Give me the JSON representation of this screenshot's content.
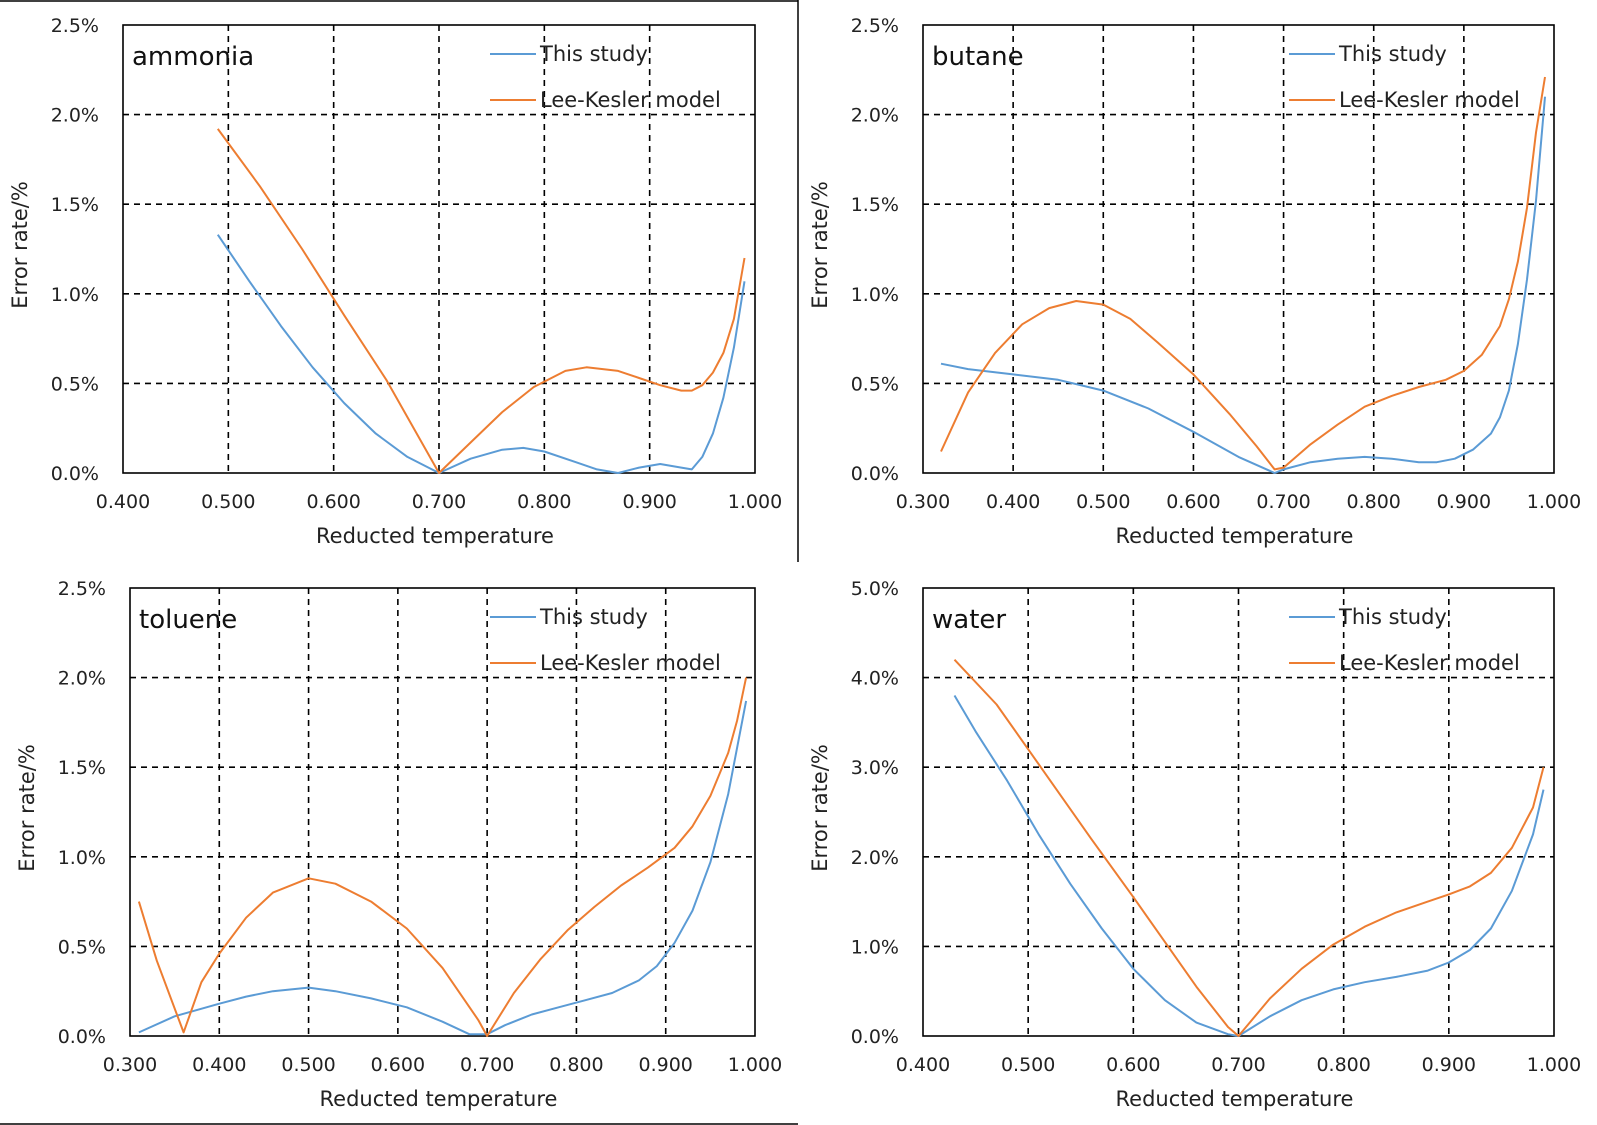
{
  "colors": {
    "this_study": "#5B9BD5",
    "lee_kesler": "#ED7D31",
    "grid": "#000000",
    "frame": "#000000"
  },
  "chart_data": [
    {
      "type": "line",
      "title": "ammonia",
      "xlabel": "Reducted temperature",
      "ylabel": "Error rate/%",
      "xlim": [
        0.4,
        1.0
      ],
      "ylim": [
        0,
        2.5
      ],
      "x_ticks": [
        0.4,
        0.5,
        0.6,
        0.7,
        0.8,
        0.9,
        1.0
      ],
      "x_tick_labels": [
        "0.400",
        "0.500",
        "0.600",
        "0.700",
        "0.800",
        "0.900",
        "1.000"
      ],
      "y_ticks": [
        0,
        0.5,
        1.0,
        1.5,
        2.0,
        2.5
      ],
      "y_tick_labels": [
        "0.0%",
        "0.5%",
        "1.0%",
        "1.5%",
        "2.0%",
        "2.5%"
      ],
      "grid": true,
      "legend": "top-right",
      "series": [
        {
          "name": "This study",
          "color": "#5B9BD5",
          "x": [
            0.49,
            0.52,
            0.55,
            0.58,
            0.61,
            0.64,
            0.67,
            0.7,
            0.73,
            0.76,
            0.78,
            0.8,
            0.83,
            0.85,
            0.87,
            0.89,
            0.91,
            0.93,
            0.94,
            0.95,
            0.96,
            0.97,
            0.98,
            0.99
          ],
          "y": [
            1.33,
            1.07,
            0.82,
            0.59,
            0.39,
            0.22,
            0.09,
            0.0,
            0.08,
            0.13,
            0.14,
            0.12,
            0.06,
            0.02,
            0.0,
            0.03,
            0.05,
            0.03,
            0.02,
            0.09,
            0.22,
            0.42,
            0.7,
            1.07
          ]
        },
        {
          "name": "Lee-Kesler model",
          "color": "#ED7D31",
          "x": [
            0.49,
            0.53,
            0.57,
            0.61,
            0.65,
            0.7,
            0.73,
            0.76,
            0.79,
            0.82,
            0.84,
            0.87,
            0.89,
            0.91,
            0.93,
            0.94,
            0.95,
            0.96,
            0.97,
            0.98,
            0.99
          ],
          "y": [
            1.92,
            1.6,
            1.25,
            0.88,
            0.52,
            0.0,
            0.17,
            0.34,
            0.48,
            0.57,
            0.59,
            0.57,
            0.53,
            0.49,
            0.46,
            0.46,
            0.49,
            0.56,
            0.67,
            0.86,
            1.2
          ]
        }
      ]
    },
    {
      "type": "line",
      "title": "butane",
      "xlabel": "Reducted temperature",
      "ylabel": "Error rate/%",
      "xlim": [
        0.3,
        1.0
      ],
      "ylim": [
        0,
        2.5
      ],
      "x_ticks": [
        0.3,
        0.4,
        0.5,
        0.6,
        0.7,
        0.8,
        0.9,
        1.0
      ],
      "x_tick_labels": [
        "0.300",
        "0.400",
        "0.500",
        "0.600",
        "0.700",
        "0.800",
        "0.900",
        "1.000"
      ],
      "y_ticks": [
        0,
        0.5,
        1.0,
        1.5,
        2.0,
        2.5
      ],
      "y_tick_labels": [
        "0.0%",
        "0.5%",
        "1.0%",
        "1.5%",
        "2.0%",
        "2.5%"
      ],
      "grid": true,
      "legend": "top-right",
      "series": [
        {
          "name": "This study",
          "color": "#5B9BD5",
          "x": [
            0.32,
            0.35,
            0.4,
            0.45,
            0.5,
            0.55,
            0.6,
            0.65,
            0.69,
            0.7,
            0.73,
            0.76,
            0.79,
            0.82,
            0.85,
            0.87,
            0.89,
            0.91,
            0.93,
            0.94,
            0.95,
            0.96,
            0.97,
            0.98,
            0.99
          ],
          "y": [
            0.61,
            0.58,
            0.55,
            0.52,
            0.46,
            0.36,
            0.23,
            0.09,
            0.0,
            0.02,
            0.06,
            0.08,
            0.09,
            0.08,
            0.06,
            0.06,
            0.08,
            0.13,
            0.22,
            0.31,
            0.46,
            0.72,
            1.08,
            1.52,
            2.1
          ]
        },
        {
          "name": "Lee-Kesler model",
          "color": "#ED7D31",
          "x": [
            0.32,
            0.35,
            0.38,
            0.41,
            0.44,
            0.47,
            0.5,
            0.53,
            0.56,
            0.6,
            0.64,
            0.67,
            0.69,
            0.7,
            0.73,
            0.76,
            0.79,
            0.82,
            0.85,
            0.88,
            0.9,
            0.92,
            0.94,
            0.95,
            0.96,
            0.97,
            0.98,
            0.99
          ],
          "y": [
            0.12,
            0.45,
            0.67,
            0.83,
            0.92,
            0.96,
            0.94,
            0.86,
            0.73,
            0.55,
            0.33,
            0.15,
            0.02,
            0.03,
            0.16,
            0.27,
            0.37,
            0.43,
            0.48,
            0.52,
            0.57,
            0.66,
            0.82,
            0.97,
            1.18,
            1.48,
            1.9,
            2.21
          ]
        }
      ]
    },
    {
      "type": "line",
      "title": "toluene",
      "xlabel": "Reducted temperature",
      "ylabel": "Error rate/%",
      "xlim": [
        0.3,
        1.0
      ],
      "ylim": [
        0,
        2.5
      ],
      "x_ticks": [
        0.3,
        0.4,
        0.5,
        0.6,
        0.7,
        0.8,
        0.9,
        1.0
      ],
      "x_tick_labels": [
        "0.300",
        "0.400",
        "0.500",
        "0.600",
        "0.700",
        "0.800",
        "0.900",
        "1.000"
      ],
      "y_ticks": [
        0,
        0.5,
        1.0,
        1.5,
        2.0,
        2.5
      ],
      "y_tick_labels": [
        "0.0%",
        "0.5%",
        "1.0%",
        "1.5%",
        "2.0%",
        "2.5%"
      ],
      "grid": true,
      "legend": "top-right",
      "series": [
        {
          "name": "This study",
          "color": "#5B9BD5",
          "x": [
            0.31,
            0.35,
            0.4,
            0.43,
            0.46,
            0.5,
            0.53,
            0.57,
            0.61,
            0.65,
            0.68,
            0.7,
            0.72,
            0.75,
            0.78,
            0.81,
            0.84,
            0.87,
            0.89,
            0.91,
            0.93,
            0.95,
            0.97,
            0.99
          ],
          "y": [
            0.02,
            0.11,
            0.18,
            0.22,
            0.25,
            0.27,
            0.25,
            0.21,
            0.16,
            0.08,
            0.01,
            0.01,
            0.06,
            0.12,
            0.16,
            0.2,
            0.24,
            0.31,
            0.39,
            0.52,
            0.7,
            0.97,
            1.35,
            1.87
          ]
        },
        {
          "name": "Lee-Kesler model",
          "color": "#ED7D31",
          "x": [
            0.31,
            0.33,
            0.36,
            0.38,
            0.4,
            0.43,
            0.46,
            0.5,
            0.53,
            0.57,
            0.61,
            0.65,
            0.69,
            0.7,
            0.73,
            0.76,
            0.79,
            0.82,
            0.85,
            0.88,
            0.91,
            0.93,
            0.95,
            0.97,
            0.98,
            0.99
          ],
          "y": [
            0.75,
            0.42,
            0.02,
            0.3,
            0.46,
            0.66,
            0.8,
            0.88,
            0.85,
            0.75,
            0.6,
            0.38,
            0.09,
            0.0,
            0.24,
            0.43,
            0.59,
            0.72,
            0.84,
            0.94,
            1.05,
            1.17,
            1.34,
            1.58,
            1.76,
            2.0
          ]
        }
      ]
    },
    {
      "type": "line",
      "title": "water",
      "xlabel": "Reducted temperature",
      "ylabel": "Error rate/%",
      "xlim": [
        0.4,
        1.0
      ],
      "ylim": [
        0,
        5.0
      ],
      "x_ticks": [
        0.4,
        0.5,
        0.6,
        0.7,
        0.8,
        0.9,
        1.0
      ],
      "x_tick_labels": [
        "0.400",
        "0.500",
        "0.600",
        "0.700",
        "0.800",
        "0.900",
        "1.000"
      ],
      "y_ticks": [
        0,
        1.0,
        2.0,
        3.0,
        4.0,
        5.0
      ],
      "y_tick_labels": [
        "0.0%",
        "1.0%",
        "2.0%",
        "3.0%",
        "4.0%",
        "5.0%"
      ],
      "grid": true,
      "legend": "top-right",
      "series": [
        {
          "name": "This study",
          "color": "#5B9BD5",
          "x": [
            0.43,
            0.45,
            0.48,
            0.51,
            0.54,
            0.57,
            0.6,
            0.63,
            0.66,
            0.69,
            0.7,
            0.73,
            0.76,
            0.79,
            0.82,
            0.85,
            0.88,
            0.9,
            0.92,
            0.94,
            0.96,
            0.98,
            0.99
          ],
          "y": [
            3.8,
            3.4,
            2.85,
            2.25,
            1.7,
            1.2,
            0.75,
            0.4,
            0.15,
            0.02,
            0.0,
            0.22,
            0.4,
            0.52,
            0.6,
            0.66,
            0.73,
            0.82,
            0.96,
            1.2,
            1.62,
            2.25,
            2.75
          ]
        },
        {
          "name": "Lee-Kesler model",
          "color": "#ED7D31",
          "x": [
            0.43,
            0.47,
            0.5,
            0.53,
            0.56,
            0.6,
            0.63,
            0.66,
            0.69,
            0.7,
            0.73,
            0.76,
            0.79,
            0.82,
            0.85,
            0.88,
            0.9,
            0.92,
            0.94,
            0.96,
            0.98,
            0.99
          ],
          "y": [
            4.2,
            3.7,
            3.2,
            2.7,
            2.2,
            1.55,
            1.05,
            0.55,
            0.1,
            0.0,
            0.42,
            0.75,
            1.02,
            1.22,
            1.38,
            1.5,
            1.58,
            1.67,
            1.82,
            2.1,
            2.55,
            3.0
          ]
        }
      ]
    }
  ]
}
